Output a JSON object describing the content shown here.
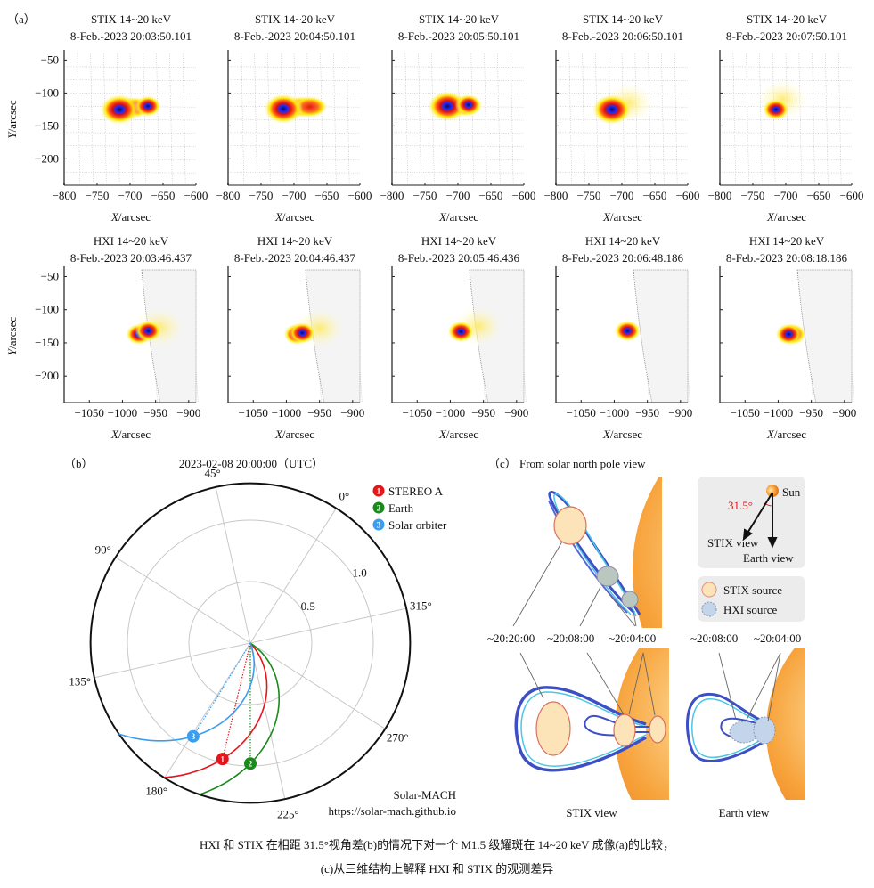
{
  "panel_a": {
    "label": "（a）",
    "axis_var_x": "X",
    "axis_var_y": "Y",
    "axis_unit": "/arcsec",
    "stix": {
      "xlim": [
        -800,
        -600
      ],
      "ylim": [
        -240,
        -40
      ],
      "xticks": [
        -800,
        -750,
        -700,
        -650,
        -600
      ],
      "yticks": [
        -50,
        -100,
        -150,
        -200
      ],
      "frames": [
        {
          "title": "STIX 14~20 keV",
          "time": "8-Feb.-2023 20:03:50.101",
          "sources": [
            {
              "x": -695,
              "y": -122,
              "kind": "ridge"
            },
            {
              "x": -716,
              "y": -125,
              "kind": "core"
            },
            {
              "x": -673,
              "y": -120,
              "kind": "core-small"
            }
          ]
        },
        {
          "title": "STIX 14~20 keV",
          "time": "8-Feb.-2023 20:04:50.101",
          "sources": [
            {
              "x": -690,
              "y": -121,
              "kind": "ridge"
            },
            {
              "x": -676,
              "y": -121,
              "kind": "ridge"
            },
            {
              "x": -716,
              "y": -124,
              "kind": "core"
            }
          ]
        },
        {
          "title": "STIX 14~20 keV",
          "time": "8-Feb.-2023 20:05:50.101",
          "sources": [
            {
              "x": -690,
              "y": -120,
              "kind": "ridge"
            },
            {
              "x": -716,
              "y": -120,
              "kind": "core"
            },
            {
              "x": -684,
              "y": -118,
              "kind": "core-small"
            }
          ]
        },
        {
          "title": "STIX 14~20 keV",
          "time": "8-Feb.-2023 20:06:50.101",
          "sources": [
            {
              "x": -690,
              "y": -115,
              "kind": "faint"
            },
            {
              "x": -715,
              "y": -125,
              "kind": "core"
            }
          ]
        },
        {
          "title": "STIX 14~20 keV",
          "time": "8-Feb.-2023 20:07:50.101",
          "sources": [
            {
              "x": -705,
              "y": -110,
              "kind": "faint"
            },
            {
              "x": -715,
              "y": -125,
              "kind": "core-small"
            }
          ]
        }
      ]
    },
    "hxi": {
      "xlim": [
        -1088,
        -889
      ],
      "ylim": [
        -240,
        -40
      ],
      "xticks": [
        -1050,
        -1000,
        -950,
        -900
      ],
      "yticks": [
        -50,
        -100,
        -150,
        -200
      ],
      "frames": [
        {
          "title": "HXI 14~20 keV",
          "time": "8-Feb.-2023 20:03:46.437",
          "sources": [
            {
              "x": -945,
              "y": -127,
              "kind": "faint"
            },
            {
              "x": -975,
              "y": -137,
              "kind": "core-small"
            },
            {
              "x": -961,
              "y": -132,
              "kind": "core-small"
            }
          ]
        },
        {
          "title": "HXI 14~20 keV",
          "time": "8-Feb.-2023 20:04:46.437",
          "sources": [
            {
              "x": -950,
              "y": -128,
              "kind": "faint"
            },
            {
              "x": -984,
              "y": -137,
              "kind": "core-small"
            },
            {
              "x": -976,
              "y": -135,
              "kind": "core-small"
            }
          ]
        },
        {
          "title": "HXI 14~20 keV",
          "time": "8-Feb.-2023 20:05:46.436",
          "sources": [
            {
              "x": -958,
              "y": -125,
              "kind": "faint"
            },
            {
              "x": -984,
              "y": -133,
              "kind": "core-small"
            }
          ]
        },
        {
          "title": "HXI 14~20 keV",
          "time": "8-Feb.-2023 20:06:48.186",
          "sources": [
            {
              "x": -980,
              "y": -132,
              "kind": "core-small"
            }
          ]
        },
        {
          "title": "HXI 14~20 keV",
          "time": "8-Feb.-2023 20:08:18.186",
          "sources": [
            {
              "x": -978,
              "y": -137,
              "kind": "core-small"
            },
            {
              "x": -984,
              "y": -137,
              "kind": "core-small"
            }
          ]
        }
      ]
    }
  },
  "panel_b": {
    "label": "（b）",
    "title": "2023-02-08 20:00:00（UTC）",
    "chart_data": {
      "type": "polar",
      "angle_ticks": [
        "0°",
        "45°",
        "90°",
        "135°",
        "180°",
        "225°",
        "270°",
        "315°"
      ],
      "angle_values": [
        0,
        45,
        90,
        135,
        180,
        225,
        270,
        315
      ],
      "radial_ticks": [
        "0.5",
        "1.0"
      ],
      "radial_values": [
        0.5,
        1.0
      ],
      "rlim": [
        0,
        1.3
      ],
      "grid": true,
      "legend_position": "top-right",
      "bodies": [
        {
          "marker": "1",
          "name": "STEREO A",
          "longitude_deg": 199,
          "distance_au": 0.97,
          "color": "#e8141b"
        },
        {
          "marker": "2",
          "name": "Earth",
          "longitude_deg": 212.5,
          "distance_au": 0.98,
          "color": "#1a8a1a"
        },
        {
          "marker": "3",
          "name": "Solar orbiter",
          "longitude_deg": 181,
          "distance_au": 0.89,
          "color": "#3a9df0"
        }
      ]
    },
    "credit": "Solar-MACH",
    "url": "https://solar-mach.github.io"
  },
  "panel_c": {
    "label": "（c）",
    "title": "From solar north pole view",
    "angle_label": "31.5°",
    "sun_label": "Sun",
    "stix_view_arrow": "STIX view",
    "earth_view_arrow": "Earth view",
    "legend": {
      "stix": "STIX source",
      "hxi": "HXI source"
    },
    "times_stix": [
      "~20:20:00",
      "~20:08:00",
      "~20:04:00"
    ],
    "times_earth": [
      "~20:08:00",
      "~20:04:00"
    ],
    "stix_view_label": "STIX view",
    "earth_view_label": "Earth view",
    "colors": {
      "angle": "#e8141b",
      "stix_fill": "#fde3b8",
      "stix_stroke": "#d9705e",
      "hxi_fill": "#c2d5ea",
      "hxi_stroke": "#8a97b0",
      "loop": "#3d4fc4",
      "loop_light": "#49c7e6"
    }
  },
  "caption": [
    "HXI 和 STIX 在相距 31.5°视角差(b)的情况下对一个 M1.5 级耀斑在 14~20 keV 成像(a)的比较，",
    "(c)从三维结构上解释 HXI 和 STIX 的观测差异"
  ]
}
